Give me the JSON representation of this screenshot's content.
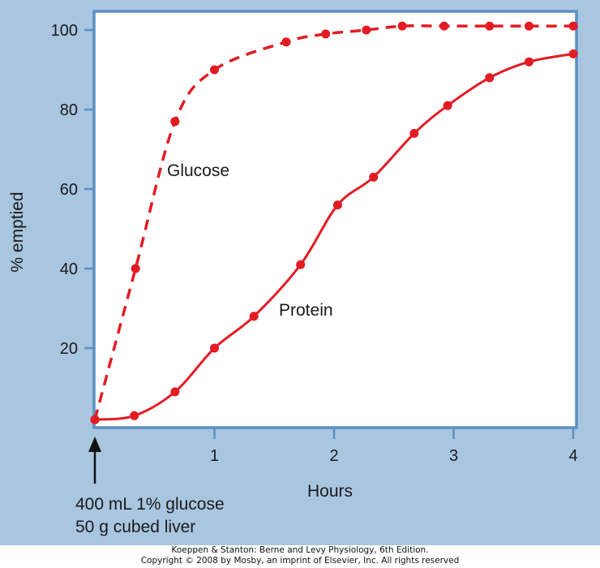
{
  "chart_data": {
    "type": "line",
    "xlabel": "Hours",
    "ylabel": "% emptied",
    "x_ticks": [
      1,
      2,
      3,
      4
    ],
    "y_ticks": [
      20,
      40,
      60,
      80,
      100
    ],
    "xlim": [
      0,
      4.05
    ],
    "ylim": [
      0,
      102
    ],
    "grid": false,
    "legend": "none (inline labels)",
    "series": [
      {
        "name": "Glucose",
        "style": "dashed",
        "color": "#e31b23",
        "x": [
          0,
          0.34,
          0.67,
          1.0,
          1.6,
          1.93,
          2.27,
          2.57,
          2.92,
          3.3,
          3.63,
          4.0
        ],
        "y": [
          2,
          40,
          77,
          90,
          97,
          99,
          100,
          101,
          101,
          101,
          101,
          101
        ]
      },
      {
        "name": "Protein",
        "style": "solid",
        "color": "#e31b23",
        "x": [
          0,
          0.33,
          0.67,
          1.0,
          1.33,
          1.72,
          2.03,
          2.33,
          2.67,
          2.95,
          3.3,
          3.63,
          4.0
        ],
        "y": [
          2,
          3,
          9,
          20,
          28,
          41,
          56,
          63,
          74,
          81,
          88,
          92,
          94
        ]
      }
    ],
    "annotations": [
      {
        "text": "400 mL 1% glucose",
        "x": 0
      },
      {
        "text": "50 g cubed liver",
        "x": 0
      }
    ]
  },
  "colors": {
    "background": "#a9c6e0",
    "plot_area": "#ffffff",
    "frame": "#5b8ec2",
    "series": "#e31b23"
  },
  "credit": {
    "line1": "Koeppen & Stanton: Berne and Levy Physiology, 6th Edition.",
    "line2": "Copyright © 2008 by Mosby, an imprint of Elsevier, Inc. All rights reserved"
  }
}
